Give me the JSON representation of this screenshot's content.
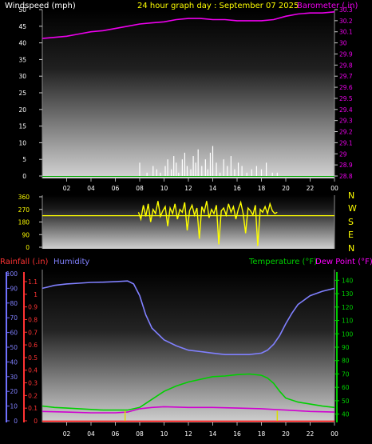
{
  "header": {
    "wind_label": "Windspeed (mph)",
    "title": "24 hour graph day : September 07 2025",
    "baro_label": "Barometer (.in)"
  },
  "bottom_header": {
    "rain_label": "Rainfall (.in)",
    "hum_label": "Humidity",
    "temp_label": "Temperature (°F)",
    "dew_label": "Dew Point (°F)"
  },
  "colors": {
    "wind": "#ffffff",
    "baro": "#ee00ee",
    "dir": "#ffff00",
    "humidity": "#8080ff",
    "temperature": "#00d000",
    "dewpoint": "#d000d0",
    "rain": "#ff3333",
    "rain_axis": "#ff3333",
    "hum_axis": "#7070ff",
    "temp_axis": "#00cc00",
    "title": "#ffff00"
  },
  "compass": [
    "N",
    "W",
    "S",
    "E",
    "N"
  ],
  "chart_data": [
    {
      "type": "line",
      "title": "24 hour graph day : September 07 2025",
      "xlabel": "",
      "x_ticks": [
        "02",
        "04",
        "06",
        "08",
        "10",
        "12",
        "14",
        "16",
        "18",
        "20",
        "22",
        "00"
      ],
      "xlim": [
        0,
        24
      ],
      "y_left": {
        "label": "Windspeed (mph)",
        "ticks": [
          0,
          5,
          10,
          15,
          20,
          25,
          30,
          35,
          40,
          45,
          50
        ],
        "lim": [
          0,
          50
        ]
      },
      "y_right": {
        "label": "Barometer (.in)",
        "ticks": [
          "28.8",
          "28.9",
          "29",
          "29.1",
          "29.2",
          "29.3",
          "29.4",
          "29.5",
          "29.6",
          "29.7",
          "29.8",
          "29.9",
          "30",
          "30.1",
          "30.2",
          "30.3"
        ],
        "lim": [
          28.8,
          30.3
        ]
      },
      "series": [
        {
          "name": "Barometer (.in)",
          "axis": "right",
          "x": [
            0,
            1,
            2,
            3,
            4,
            5,
            6,
            7,
            8,
            9,
            10,
            11,
            12,
            13,
            14,
            15,
            16,
            17,
            18,
            19,
            20,
            21,
            22,
            23,
            24
          ],
          "values": [
            30.04,
            30.05,
            30.06,
            30.08,
            30.1,
            30.11,
            30.13,
            30.15,
            30.17,
            30.18,
            30.19,
            30.21,
            30.22,
            30.22,
            30.21,
            30.21,
            30.2,
            30.2,
            30.2,
            30.21,
            30.24,
            30.26,
            30.27,
            30.27,
            30.28
          ]
        },
        {
          "name": "Windspeed (mph)",
          "axis": "left",
          "kind": "bar",
          "x": [
            8.0,
            8.6,
            9.1,
            9.4,
            9.7,
            10.1,
            10.3,
            10.6,
            10.8,
            11.0,
            11.2,
            11.5,
            11.7,
            11.9,
            12.2,
            12.4,
            12.6,
            12.8,
            13.1,
            13.4,
            13.6,
            13.8,
            14.0,
            14.3,
            14.6,
            14.9,
            15.2,
            15.5,
            15.8,
            16.1,
            16.4,
            16.8,
            17.2,
            17.6,
            18.0,
            18.4,
            18.9,
            19.3
          ],
          "values": [
            4,
            1,
            3,
            2,
            1,
            3,
            5,
            2,
            6,
            4,
            1,
            5,
            7,
            3,
            2,
            6,
            4,
            8,
            3,
            5,
            2,
            7,
            9,
            4,
            1,
            5,
            3,
            6,
            2,
            4,
            3,
            1,
            2,
            3,
            2,
            4,
            1,
            1
          ]
        }
      ]
    },
    {
      "type": "line",
      "title": "",
      "xlim": [
        0,
        24
      ],
      "y_left": {
        "label": "",
        "ticks": [
          0,
          90,
          180,
          270,
          360
        ],
        "lim": [
          0,
          360
        ]
      },
      "y_right": {
        "label": "",
        "ticks": [
          "N",
          "W",
          "S",
          "E",
          "N"
        ]
      },
      "series": [
        {
          "name": "Wind Direction",
          "axis": "left",
          "x": [
            7.9,
            8.1,
            8.3,
            8.5,
            8.7,
            8.9,
            9.1,
            9.3,
            9.5,
            9.7,
            9.9,
            10.1,
            10.3,
            10.5,
            10.7,
            10.9,
            11.1,
            11.3,
            11.5,
            11.7,
            11.9,
            12.1,
            12.3,
            12.5,
            12.7,
            12.9,
            13.1,
            13.3,
            13.5,
            13.7,
            13.9,
            14.1,
            14.3,
            14.5,
            14.7,
            14.9,
            15.1,
            15.3,
            15.5,
            15.7,
            15.9,
            16.1,
            16.3,
            16.5,
            16.7,
            16.9,
            17.1,
            17.3,
            17.5,
            17.7,
            17.9,
            18.1,
            18.3,
            18.5,
            18.7,
            18.9,
            19.1,
            19.3
          ],
          "values": [
            250,
            200,
            300,
            220,
            310,
            180,
            270,
            240,
            330,
            220,
            260,
            290,
            150,
            280,
            240,
            310,
            200,
            270,
            250,
            320,
            120,
            260,
            300,
            230,
            280,
            60,
            290,
            250,
            330,
            210,
            270,
            240,
            300,
            20,
            260,
            280,
            230,
            310,
            250,
            290,
            200,
            270,
            320,
            240,
            100,
            280,
            260,
            230,
            300,
            10,
            270,
            250,
            290,
            240,
            310,
            260,
            240,
            250
          ]
        },
        {
          "name": "Average Direction",
          "axis": "left",
          "x": [
            0,
            24
          ],
          "values": [
            225,
            225
          ]
        }
      ]
    },
    {
      "type": "line",
      "title": "",
      "xlim": [
        0,
        24
      ],
      "x_ticks": [
        "02",
        "04",
        "06",
        "08",
        "10",
        "12",
        "14",
        "16",
        "18",
        "20",
        "22",
        "00"
      ],
      "y_left_rain": {
        "label": "Rainfall (.in)",
        "ticks": [
          "0",
          "0.1",
          "0.2",
          "0.3",
          "0.4",
          "0.5",
          "0.6",
          "0.7",
          "0.8",
          "0.9",
          "1",
          "1.1"
        ],
        "lim": [
          0,
          1.1
        ]
      },
      "y_left_hum": {
        "label": "Humidity",
        "ticks": [
          0,
          10,
          20,
          30,
          40,
          50,
          60,
          70,
          80,
          90,
          100
        ],
        "lim": [
          0,
          100
        ]
      },
      "y_right": {
        "label": "Temperature (°F) / Dew Point (°F)",
        "ticks": [
          40,
          50,
          60,
          70,
          80,
          90,
          100,
          110,
          120,
          130,
          140
        ],
        "lim": [
          35,
          145
        ]
      },
      "series": [
        {
          "name": "Humidity",
          "axis": "hum",
          "x": [
            0,
            0.5,
            1,
            2,
            3,
            4,
            5,
            6,
            7,
            7.5,
            8,
            8.5,
            9,
            10,
            11,
            12,
            13,
            14,
            15,
            16,
            17,
            18,
            18.5,
            19,
            19.5,
            20,
            20.5,
            21,
            22,
            23,
            24
          ],
          "values": [
            90,
            91,
            92,
            93,
            93.5,
            94,
            94.2,
            94.5,
            95,
            93,
            85,
            72,
            63,
            55,
            51,
            48,
            47,
            46,
            45,
            45,
            45,
            46,
            48,
            52,
            58,
            66,
            73,
            79,
            85,
            88,
            90
          ]
        },
        {
          "name": "Temperature (°F)",
          "axis": "right",
          "x": [
            0,
            1,
            2,
            3,
            4,
            5,
            6,
            7,
            8,
            9,
            10,
            11,
            12,
            13,
            14,
            15,
            16,
            17,
            18,
            18.5,
            19,
            19.5,
            20,
            21,
            22,
            23,
            24
          ],
          "values": [
            46,
            45,
            44.5,
            44,
            43.5,
            43,
            43,
            43,
            45,
            51,
            57,
            61,
            64,
            66,
            68,
            68.5,
            69.5,
            70,
            69,
            67,
            63,
            57,
            52,
            49,
            47.5,
            46,
            45
          ]
        },
        {
          "name": "Dew Point (°F)",
          "axis": "right",
          "x": [
            0,
            2,
            4,
            6,
            7,
            8,
            9,
            10,
            12,
            14,
            16,
            18,
            19,
            20,
            22,
            24
          ],
          "values": [
            42,
            41.5,
            41,
            41,
            41.5,
            44,
            45,
            45.5,
            45,
            45,
            44.5,
            44,
            43.5,
            43,
            42,
            41.5
          ]
        },
        {
          "name": "Rainfall (.in)",
          "axis": "rain",
          "kind": "ticks",
          "x": [
            6.8,
            19.3
          ],
          "values": [
            0.08,
            0.08
          ]
        }
      ]
    }
  ]
}
